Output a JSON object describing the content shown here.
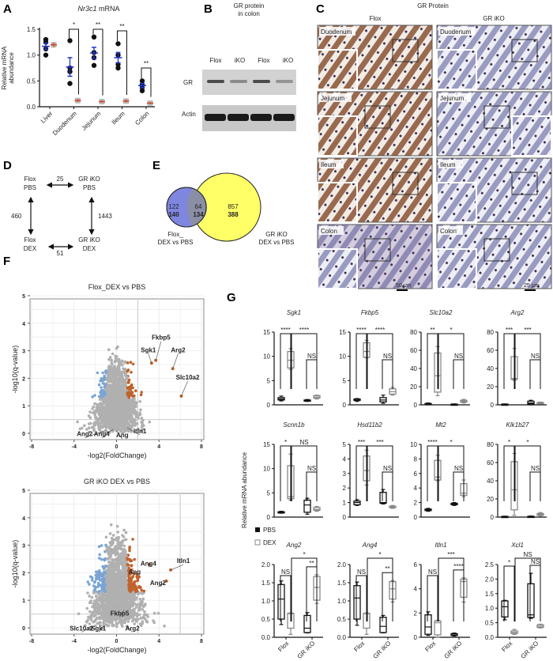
{
  "panel_letters": [
    "A",
    "B",
    "C",
    "D",
    "E",
    "F",
    "G"
  ],
  "colors": {
    "flox": "#111111",
    "ko_mean": "#d04020",
    "sem": "#2233cc",
    "ko_point": "#aaaaaa",
    "up": "#c0622c",
    "down": "#7aa4d4",
    "ns": "#b0b0b0",
    "venn_left": "#7f86e0",
    "venn_right": "#ffff66",
    "venn_overlap": "#8a8fa6",
    "dex_box": "#888888"
  },
  "panel_b": {
    "title_line1": "GR protein",
    "title_line2": "in colon",
    "lanes": [
      "Flox",
      "iKO",
      "Flox",
      "iKO"
    ],
    "rows": [
      "GR",
      "Actin"
    ],
    "gr_band_intensity": [
      0.8,
      0.45,
      0.8,
      0.4
    ]
  },
  "panel_c": {
    "title": "GR Protein",
    "columns": [
      "Flox",
      "GR iKO"
    ],
    "tissues": [
      "Duodenum",
      "Jejunum",
      "Ileum",
      "Colon"
    ],
    "scale_bars": [
      "50 μm",
      "25 μm"
    ]
  },
  "panel_d": {
    "nodes": [
      "Flox",
      "PBS",
      "GR iKO",
      "PBS",
      "Flox",
      "DEX",
      "GR iKO",
      "DEX"
    ],
    "edges": {
      "top": "25",
      "left": "460",
      "right": "1443",
      "bottom": "51"
    }
  },
  "panel_e": {
    "left_only": [
      "122",
      "140"
    ],
    "overlap": [
      "64",
      "134"
    ],
    "right_only": [
      "857",
      "388"
    ],
    "left_label": [
      "Flox_",
      "DEX vs PBS"
    ],
    "right_label": [
      "GR iKO",
      "DEX vs PBS"
    ]
  },
  "g_ylabel": "Relative mRNA abundance",
  "g_legend": [
    "PBS",
    "DEX"
  ],
  "g_xticks": [
    "Flox",
    "GR iKO"
  ],
  "chart_data": [
    {
      "type": "scatter",
      "title": "Nr3c1 mRNA",
      "title_italic": "Nr3c1",
      "title_rest": " mRNA",
      "ylabel_lines": [
        "Relative mRNA",
        "abundance"
      ],
      "ylim": [
        0,
        1.5
      ],
      "yticks": [
        "0.0",
        "0.5",
        "1.0",
        "1.5"
      ],
      "categories": [
        "Liver",
        "Duodenum",
        "Jejunum",
        "Ileum",
        "Colon"
      ],
      "flox_points": [
        [
          1.0,
          1.12,
          1.25,
          1.3
        ],
        [
          0.45,
          0.68,
          0.75,
          1.28
        ],
        [
          0.8,
          0.95,
          1.05,
          1.35
        ],
        [
          0.75,
          0.82,
          1.0,
          1.22
        ],
        [
          0.31,
          0.37,
          0.42,
          0.5
        ]
      ],
      "flox_mean": [
        1.17,
        0.77,
        1.04,
        0.95,
        0.41
      ],
      "flox_sem": [
        0.06,
        0.18,
        0.11,
        0.1,
        0.04
      ],
      "ko_mean": [
        1.2,
        0.12,
        0.1,
        0.11,
        0.07
      ],
      "ko_sem": [
        0.05,
        0.03,
        0.02,
        0.03,
        0.02
      ],
      "significance": [
        "",
        "*",
        "**",
        "**",
        "**"
      ]
    },
    {
      "type": "scatter",
      "title": "Flox_DEX vs PBS",
      "xlabel": "-log2(FoldChange)",
      "ylabel": "-log10(q-value)",
      "xlim": [
        -8,
        8
      ],
      "ylim": [
        0,
        5
      ],
      "xticks": [
        "-8",
        "-4",
        "0",
        "4",
        "8"
      ],
      "yticks": [
        "0",
        "1",
        "2",
        "3",
        "4",
        "5"
      ],
      "thresholds": {
        "log2fc": 1,
        "neg_log10_q": 1.3
      },
      "labeled_genes": [
        {
          "name": "Fkbp5",
          "x": 3.7,
          "y": 2.65
        },
        {
          "name": "Sgk1",
          "x": 3.3,
          "y": 2.55
        },
        {
          "name": "Arg2",
          "x": 5.3,
          "y": 2.35
        },
        {
          "name": "Slc10a2",
          "x": 6.1,
          "y": 1.35
        },
        {
          "name": "Ang2",
          "x": -1.0,
          "y": 0.1
        },
        {
          "name": "Ang4",
          "x": -0.3,
          "y": 0.15
        },
        {
          "name": "Ang",
          "x": 0.0,
          "y": 0.1
        },
        {
          "name": "Itln1",
          "x": 1.0,
          "y": 0.2
        }
      ]
    },
    {
      "type": "scatter",
      "title": "GR iKO DEX vs PBS",
      "xlabel": "-log2(FoldChange)",
      "ylabel": "-log10(q-value)",
      "xlim": [
        -8,
        8
      ],
      "ylim": [
        0,
        5
      ],
      "xticks": [
        "-8",
        "-4",
        "0",
        "4",
        "8"
      ],
      "yticks": [
        "0",
        "1",
        "2",
        "3",
        "4",
        "5"
      ],
      "thresholds": {
        "log2fc": 1,
        "neg_log10_q": 1.3
      },
      "labeled_genes": [
        {
          "name": "Itln1",
          "x": 5.1,
          "y": 2.1
        },
        {
          "name": "Ang4",
          "x": 3.1,
          "y": 2.3
        },
        {
          "name": "Ang",
          "x": 1.4,
          "y": 2.0
        },
        {
          "name": "Ang2",
          "x": 4.7,
          "y": 1.7
        },
        {
          "name": "Fkbp5",
          "x": 0.7,
          "y": 0.65
        },
        {
          "name": "Slc10a2",
          "x": -2.5,
          "y": 0.0
        },
        {
          "name": "Sgk1",
          "x": -1.3,
          "y": 0.0
        },
        {
          "name": "Arg2",
          "x": 1.0,
          "y": 0.05
        }
      ]
    },
    {
      "type": "box",
      "groups": [
        "Flox PBS",
        "Flox DEX",
        "GR iKO PBS",
        "GR iKO DEX"
      ],
      "genes": [
        {
          "name": "Sgk1",
          "ylim": [
            0,
            15
          ],
          "yticks": [
            "0",
            "5",
            "10",
            "15"
          ],
          "boxes": [
            [
              0.8,
              1,
              1.2,
              1.5,
              1.8
            ],
            [
              7.3,
              7.6,
              9.2,
              11,
              11.6
            ],
            [
              0.7,
              0.8,
              0.9,
              1,
              1.1
            ],
            [
              1.2,
              1.4,
              1.6,
              1.9,
              2
            ]
          ],
          "sig": [
            [
              0,
              1,
              "****"
            ],
            [
              1,
              3,
              "****"
            ],
            [
              2,
              3,
              "NS"
            ]
          ]
        },
        {
          "name": "Fkbp5",
          "ylim": [
            0,
            15
          ],
          "yticks": [
            "0",
            "5",
            "10",
            "15"
          ],
          "boxes": [
            [
              0.7,
              0.9,
              1,
              1.2,
              1.3
            ],
            [
              9.7,
              9.8,
              11,
              12.8,
              13.3
            ],
            [
              0.3,
              0.6,
              1,
              1.5,
              2
            ],
            [
              2,
              2.2,
              2.7,
              3.3,
              3.6
            ]
          ],
          "sig": [
            [
              0,
              1,
              "****"
            ],
            [
              1,
              3,
              "****"
            ],
            [
              2,
              3,
              "NS"
            ]
          ]
        },
        {
          "name": "Slc10a2",
          "ylim": [
            0,
            80
          ],
          "yticks": [
            "0",
            "20",
            "40",
            "60",
            "80"
          ],
          "boxes": [
            [
              0,
              0.5,
              1,
              1.5,
              2
            ],
            [
              10,
              14,
              32,
              57,
              64
            ],
            [
              0,
              0.2,
              0.5,
              0.8,
              1
            ],
            [
              2,
              3,
              4,
              5,
              6
            ]
          ],
          "sig": [
            [
              0,
              1,
              "**"
            ],
            [
              1,
              3,
              "*"
            ],
            [
              2,
              3,
              "NS"
            ]
          ]
        },
        {
          "name": "Arg2",
          "ylim": [
            0,
            80
          ],
          "yticks": [
            "0",
            "20",
            "40",
            "60",
            "80"
          ],
          "boxes": [
            [
              0,
              0.3,
              0.5,
              0.8,
              1
            ],
            [
              27,
              28,
              29,
              53,
              62
            ],
            [
              0,
              1,
              2,
              4,
              5
            ],
            [
              1,
              1.5,
              2,
              2.5,
              3
            ]
          ],
          "sig": [
            [
              0,
              1,
              "***"
            ],
            [
              1,
              3,
              "***"
            ],
            [
              2,
              3,
              "NS"
            ]
          ]
        },
        {
          "name": "Scnn1b",
          "ylim": [
            0,
            15
          ],
          "yticks": [
            "0",
            "5",
            "10",
            "15"
          ],
          "boxes": [
            [
              0.8,
              0.9,
              1,
              1.1,
              1.2
            ],
            [
              3.5,
              3.8,
              4.2,
              10.6,
              13
            ],
            [
              0.6,
              1,
              2.5,
              3.5,
              3.9
            ],
            [
              1.2,
              1.4,
              1.6,
              2,
              2.2
            ]
          ],
          "sig": [
            [
              0,
              1,
              "*"
            ],
            [
              1,
              3,
              "NS"
            ],
            [
              2,
              3,
              "NS"
            ]
          ]
        },
        {
          "name": "Hsd11b2",
          "ylim": [
            0,
            5
          ],
          "yticks": [
            "0",
            "1",
            "2",
            "3",
            "4",
            "5"
          ],
          "boxes": [
            [
              0.8,
              0.85,
              1,
              1.1,
              1.2
            ],
            [
              2.2,
              2.5,
              3.2,
              4.2,
              4.6
            ],
            [
              0.9,
              0.95,
              1,
              1.7,
              1.9
            ],
            [
              0.6,
              0.65,
              0.7,
              0.75,
              0.8
            ]
          ],
          "sig": [
            [
              0,
              1,
              "***"
            ],
            [
              1,
              3,
              "***"
            ],
            [
              2,
              3,
              "NS"
            ]
          ]
        },
        {
          "name": "Mt2",
          "ylim": [
            0,
            10
          ],
          "yticks": [
            "0",
            "2",
            "4",
            "6",
            "8",
            "10"
          ],
          "boxes": [
            [
              0.8,
              0.9,
              1,
              1.1,
              1.2
            ],
            [
              5,
              5.1,
              5.5,
              7.8,
              8.5
            ],
            [
              1.6,
              1.7,
              1.8,
              1.9,
              2
            ],
            [
              2.8,
              3,
              3.3,
              4.6,
              5.1
            ]
          ],
          "sig": [
            [
              0,
              1,
              "****"
            ],
            [
              1,
              3,
              "*"
            ],
            [
              2,
              3,
              "NS"
            ]
          ]
        },
        {
          "name": "Klk1b27",
          "ylim": [
            0,
            80
          ],
          "yticks": [
            "0",
            "20",
            "40",
            "60",
            "80"
          ],
          "boxes": [
            [
              0,
              0.2,
              0.5,
              0.8,
              1
            ],
            [
              2,
              8,
              30,
              61,
              70
            ],
            [
              0,
              0.3,
              0.6,
              0.9,
              1.2
            ],
            [
              1,
              2,
              3,
              4,
              5
            ]
          ],
          "sig": [
            [
              0,
              1,
              "*"
            ],
            [
              1,
              3,
              "*"
            ],
            [
              2,
              3,
              "NS"
            ]
          ]
        },
        {
          "name": "Ang2",
          "ylim": [
            0,
            2
          ],
          "yticks": [
            "0.0",
            "0.5",
            "1.0",
            "1.5",
            "2.0"
          ],
          "boxes": [
            [
              0.35,
              0.5,
              1.05,
              1.45,
              1.55
            ],
            [
              0.08,
              0.25,
              0.65,
              0.66,
              0.67
            ],
            [
              0.12,
              0.13,
              0.25,
              0.6,
              0.68
            ],
            [
              0.93,
              1.02,
              1.37,
              1.67,
              1.72
            ]
          ],
          "sig": [
            [
              0,
              1,
              "NS"
            ],
            [
              1,
              3,
              "*"
            ],
            [
              2,
              3,
              "**"
            ]
          ]
        },
        {
          "name": "Ang4",
          "ylim": [
            0,
            2
          ],
          "yticks": [
            "0.0",
            "0.5",
            "1.0",
            "1.5",
            "2.0"
          ],
          "boxes": [
            [
              0.33,
              0.5,
              1.08,
              1.42,
              1.52
            ],
            [
              0.08,
              0.25,
              0.65,
              0.66,
              0.67
            ],
            [
              0.12,
              0.13,
              0.3,
              0.55,
              0.6
            ],
            [
              0.97,
              1.05,
              1.33,
              1.53,
              1.56
            ]
          ],
          "sig": [
            [
              0,
              1,
              "NS"
            ],
            [
              1,
              3,
              "*"
            ],
            [
              2,
              3,
              "**"
            ]
          ]
        },
        {
          "name": "Itln1",
          "ylim": [
            0,
            6
          ],
          "yticks": [
            "0",
            "2",
            "4",
            "6"
          ],
          "boxes": [
            [
              0.15,
              0.25,
              0.85,
              1.85,
              2.1
            ],
            [
              0,
              0.2,
              1.2,
              1.35,
              1.4
            ],
            [
              0.1,
              0.15,
              0.2,
              0.3,
              0.35
            ],
            [
              2.9,
              3.3,
              4.6,
              4.8,
              4.9
            ]
          ],
          "sig": [
            [
              0,
              1,
              "NS"
            ],
            [
              1,
              3,
              "***"
            ],
            [
              2,
              3,
              "****"
            ]
          ]
        },
        {
          "name": "Xcl1",
          "ylim": [
            0,
            2.5
          ],
          "yticks": [
            "0.0",
            "0.5",
            "1.0",
            "1.5",
            "2.0",
            "2.5"
          ],
          "boxes": [
            [
              0.6,
              0.7,
              1.05,
              1.25,
              1.27
            ],
            [
              0.1,
              0.13,
              0.17,
              0.22,
              0.27
            ],
            [
              0.65,
              0.68,
              0.77,
              1.84,
              2.2
            ],
            [
              0.32,
              0.34,
              0.38,
              0.43,
              0.45
            ]
          ],
          "sig": [
            [
              0,
              1,
              "*"
            ],
            [
              1,
              3,
              "NS"
            ],
            [
              2,
              3,
              "NS"
            ]
          ]
        }
      ]
    }
  ]
}
